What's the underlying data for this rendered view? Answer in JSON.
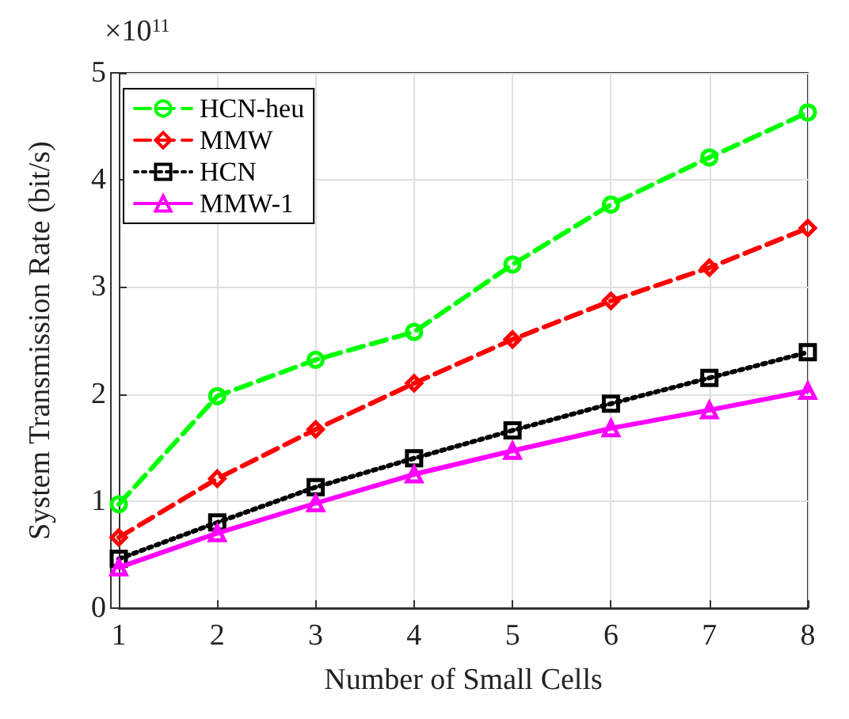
{
  "chart_data": {
    "type": "line",
    "xlabel": "Number of Small Cells",
    "ylabel": "System Transmission Rate (bit/s)",
    "annotations": [
      "×10$^{11}$"
    ],
    "x": [
      1,
      2,
      3,
      4,
      5,
      6,
      7,
      8
    ],
    "xlim": [
      1,
      8
    ],
    "xticks": [
      1,
      2,
      3,
      4,
      5,
      6,
      7,
      8
    ],
    "ylim": [
      0,
      5
    ],
    "yticks": [
      0,
      1,
      2,
      3,
      4,
      5
    ],
    "grid": true,
    "legend": "top left",
    "series": [
      {
        "name": "HCN-heu",
        "color": "#00ff00",
        "marker": "circle",
        "line_style": "dashed",
        "values": [
          0.97,
          1.98,
          2.32,
          2.58,
          3.21,
          3.77,
          4.21,
          4.63
        ]
      },
      {
        "name": "MMW",
        "color": "#ff0000",
        "marker": "diamond",
        "line_style": "dashed",
        "values": [
          0.66,
          1.21,
          1.67,
          2.1,
          2.51,
          2.87,
          3.18,
          3.55
        ]
      },
      {
        "name": "HCN",
        "color": "#000000",
        "marker": "square",
        "line_style": "dotted",
        "values": [
          0.46,
          0.8,
          1.13,
          1.4,
          1.66,
          1.91,
          2.15,
          2.39
        ]
      },
      {
        "name": "MMW-1",
        "color": "#ff00ff",
        "marker": "triangle",
        "line_style": "solid",
        "values": [
          0.38,
          0.7,
          0.98,
          1.25,
          1.47,
          1.68,
          1.85,
          2.03
        ]
      }
    ]
  }
}
